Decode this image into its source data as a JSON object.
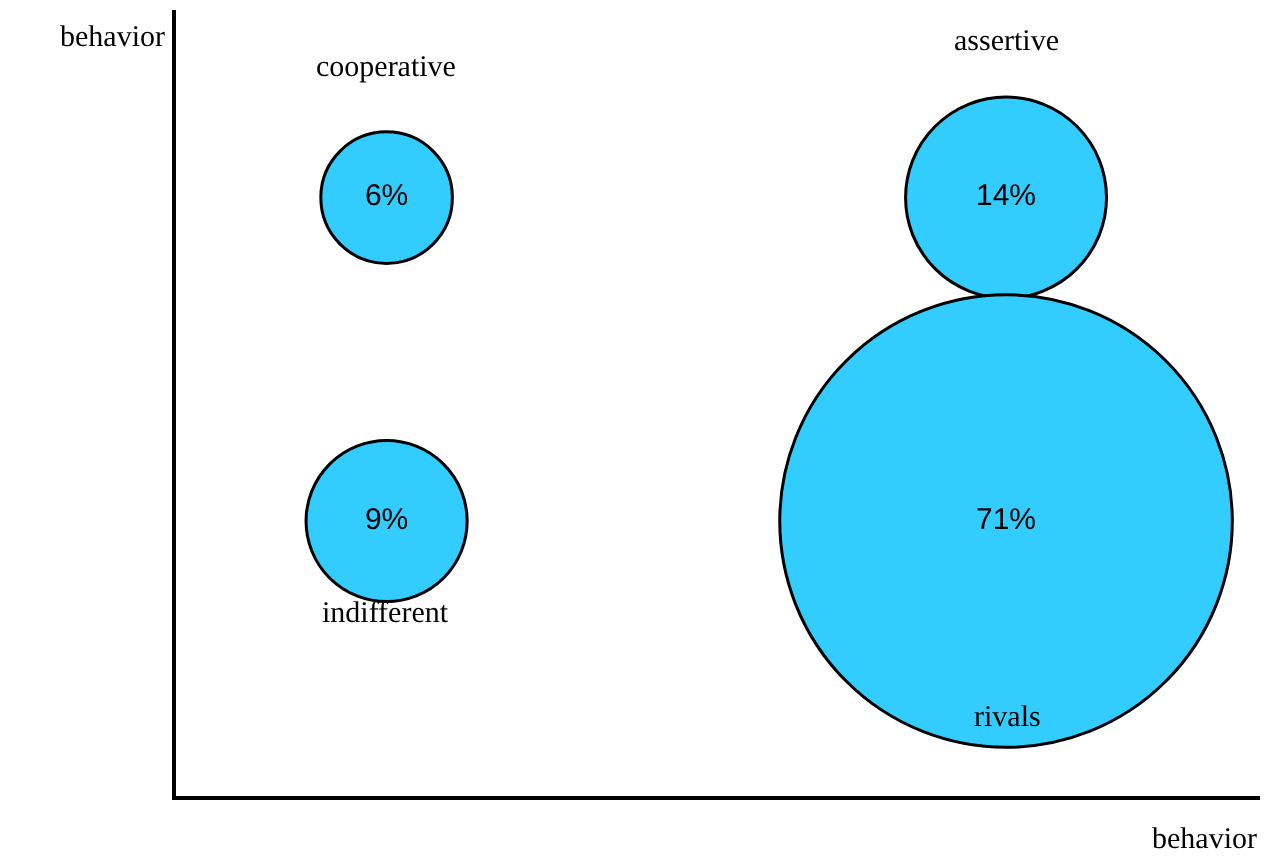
{
  "chart_data": {
    "type": "other",
    "xlabel": "behavior",
    "ylabel": "behavior",
    "color": "#33ccff",
    "categories": [
      "cooperative",
      "assertive",
      "indifferent",
      "rivals"
    ],
    "values": [
      6,
      14,
      9,
      71
    ],
    "value_labels": [
      "6%",
      "14%",
      "9%",
      "71%"
    ]
  }
}
